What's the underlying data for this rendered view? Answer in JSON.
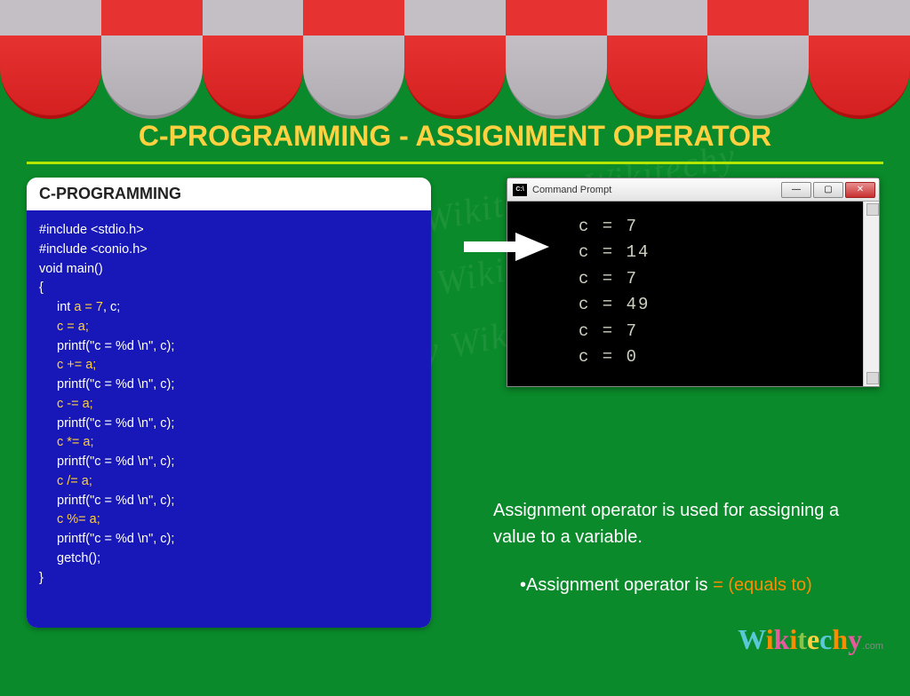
{
  "title": "C-PROGRAMMING - ASSIGNMENT OPERATOR",
  "code": {
    "header": "C-PROGRAMMING",
    "lines": [
      {
        "t": "#include <stdio.h>",
        "hl": false,
        "ind": 0
      },
      {
        "t": "#include <conio.h>",
        "hl": false,
        "ind": 0
      },
      {
        "t": "void main()",
        "hl": false,
        "ind": 0
      },
      {
        "t": "{",
        "hl": false,
        "ind": 0
      },
      {
        "t": "int |a = 7|, c;",
        "hl": "mixed",
        "ind": 1
      },
      {
        "t": "c = a;",
        "hl": true,
        "ind": 1
      },
      {
        "t": "printf(\"c = %d \\n\", c);",
        "hl": false,
        "ind": 1
      },
      {
        "t": "c += a;",
        "hl": true,
        "ind": 1
      },
      {
        "t": "printf(\"c = %d \\n\", c);",
        "hl": false,
        "ind": 1
      },
      {
        "t": "c -= a;",
        "hl": true,
        "ind": 1
      },
      {
        "t": "printf(\"c = %d \\n\", c);",
        "hl": false,
        "ind": 1
      },
      {
        "t": "c *= a;",
        "hl": true,
        "ind": 1
      },
      {
        "t": "printf(\"c = %d \\n\", c);",
        "hl": false,
        "ind": 1
      },
      {
        "t": "c /= a;",
        "hl": true,
        "ind": 1
      },
      {
        "t": "printf(\"c = %d \\n\", c);",
        "hl": false,
        "ind": 1
      },
      {
        "t": "c %= a;",
        "hl": true,
        "ind": 1
      },
      {
        "t": "printf(\"c = %d \\n\", c);",
        "hl": false,
        "ind": 1
      },
      {
        "t": "getch();",
        "hl": false,
        "ind": 1
      },
      {
        "t": "}",
        "hl": false,
        "ind": 0
      }
    ]
  },
  "cmd": {
    "title": "Command Prompt",
    "icon_text": "C:\\",
    "output": [
      "c = 7",
      "c = 14",
      "c = 7",
      "c = 49",
      "c = 7",
      "c = 0"
    ]
  },
  "desc": {
    "line1": "Assignment operator is used for assigning a value to a variable.",
    "bullet_pre": "•Assignment operator is ",
    "bullet_hl": "= (equals to)"
  },
  "logo": {
    "text": "Wikitechy",
    "suffix": ".com"
  },
  "watermark": "Wikitechy Wikitechy Wikitechy Wikitechy Wikitechy Wikitechy Wikitechy Wikitechy Wikitechy Wikitechy Wikitechy Wikitechy",
  "colors": {
    "page_bg": "#0a8a2a",
    "title": "#ffd040",
    "title_underline": "#b5e600",
    "code_bg": "#1818b8",
    "code_text": "#ffffff",
    "code_highlight": "#ffd040",
    "desc_text": "#ffffff",
    "desc_highlight": "#ff8c00",
    "awning_red": "#e63332",
    "awning_grey": "#c3bfc5",
    "cmd_bg": "#000000",
    "cmd_text": "#d0d0c0"
  }
}
